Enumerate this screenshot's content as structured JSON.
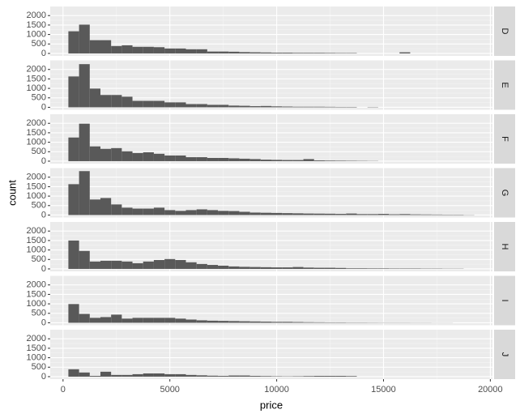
{
  "chart_data": {
    "type": "histogram",
    "xlabel": "price",
    "ylabel": "count",
    "bins": [
      250,
      750,
      1250,
      1750,
      2250,
      2750,
      3250,
      3750,
      4250,
      4750,
      5250,
      5750,
      6250,
      6750,
      7250,
      7750,
      8250,
      8750,
      9250,
      9750,
      10250,
      10750,
      11250,
      11750,
      12250,
      12750,
      13250,
      13750,
      14250,
      14750,
      15250,
      15750,
      16250,
      16750,
      17250,
      17750,
      18250,
      18750,
      19250
    ],
    "series": [
      {
        "name": "D",
        "values": [
          1170,
          1520,
          700,
          700,
          390,
          430,
          350,
          350,
          330,
          260,
          260,
          220,
          220,
          100,
          100,
          90,
          70,
          60,
          50,
          40,
          40,
          30,
          30,
          30,
          25,
          20,
          20,
          0,
          0,
          0,
          0,
          60,
          0,
          0,
          0,
          0,
          0,
          0
        ]
      },
      {
        "name": "E",
        "values": [
          1630,
          2280,
          990,
          650,
          650,
          560,
          340,
          340,
          340,
          260,
          260,
          170,
          170,
          130,
          130,
          90,
          80,
          60,
          70,
          50,
          40,
          30,
          30,
          30,
          25,
          20,
          20,
          0,
          15,
          0,
          0,
          0,
          0,
          0,
          0,
          0,
          0,
          0
        ]
      },
      {
        "name": "F",
        "values": [
          1250,
          1980,
          780,
          650,
          690,
          520,
          430,
          470,
          390,
          300,
          300,
          210,
          210,
          170,
          170,
          150,
          130,
          110,
          80,
          70,
          60,
          60,
          110,
          40,
          30,
          25,
          20,
          15,
          10,
          0,
          0,
          0,
          0,
          0,
          0,
          0,
          0,
          0
        ]
      },
      {
        "name": "G",
        "values": [
          1630,
          2320,
          820,
          900,
          560,
          390,
          340,
          340,
          390,
          260,
          220,
          260,
          300,
          260,
          220,
          210,
          170,
          130,
          120,
          110,
          100,
          90,
          80,
          75,
          70,
          60,
          80,
          50,
          50,
          60,
          40,
          50,
          35,
          30,
          25,
          20,
          20,
          10
        ]
      },
      {
        "name": "H",
        "values": [
          1500,
          950,
          390,
          430,
          430,
          390,
          300,
          390,
          470,
          520,
          470,
          350,
          260,
          210,
          170,
          130,
          110,
          100,
          90,
          80,
          80,
          100,
          70,
          60,
          60,
          50,
          30,
          30,
          25,
          25,
          20,
          20,
          20,
          15,
          15,
          10,
          10,
          0
        ]
      },
      {
        "name": "I",
        "values": [
          990,
          470,
          260,
          300,
          430,
          220,
          260,
          260,
          260,
          260,
          220,
          170,
          130,
          110,
          100,
          90,
          80,
          70,
          60,
          50,
          50,
          40,
          30,
          25,
          20,
          20,
          15,
          15,
          12,
          10,
          10,
          10,
          8,
          8,
          5,
          5,
          0,
          0
        ]
      },
      {
        "name": "J",
        "values": [
          390,
          220,
          40,
          260,
          90,
          90,
          130,
          170,
          170,
          130,
          130,
          90,
          70,
          50,
          40,
          60,
          60,
          40,
          30,
          20,
          15,
          20,
          30,
          40,
          40,
          40,
          30,
          0,
          0,
          0,
          0,
          0,
          0,
          0,
          0,
          0,
          0,
          0
        ]
      }
    ],
    "color": "#595959",
    "xlim": [
      -600,
      20100
    ],
    "xticks": [
      0,
      5000,
      10000,
      15000,
      20000
    ],
    "ylim": [
      -130,
      2480
    ],
    "yticks": [
      0,
      500,
      1000,
      1500,
      2000
    ],
    "grid": true
  }
}
